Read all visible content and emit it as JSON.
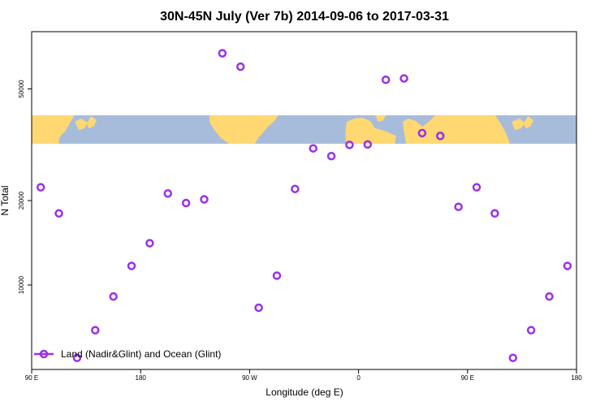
{
  "chart_data": {
    "type": "scatter",
    "title": "30N-45N July (Ver 7b)   2014-09-06 to 2017-03-31",
    "xlabel": "Longitude (deg E)",
    "ylabel": "N Total",
    "x_ticks": [
      {
        "value": 90,
        "label": "90 E"
      },
      {
        "value": 180,
        "label": "180"
      },
      {
        "value": 270,
        "label": "90 W"
      },
      {
        "value": 360,
        "label": "0"
      },
      {
        "value": 450,
        "label": "90 E"
      },
      {
        "value": 540,
        "label": "180"
      }
    ],
    "xlim": [
      90,
      540
    ],
    "y_scale": "log",
    "y_ticks": [
      {
        "value": 10000,
        "label": "10000"
      },
      {
        "value": 20000,
        "label": "20000"
      },
      {
        "value": 50000,
        "label": "50000"
      }
    ],
    "ylim": [
      5000,
      80000
    ],
    "map_band": {
      "ocean_color": "#a7bcda",
      "land_color": "#ffd872"
    },
    "series": [
      {
        "name": "Land (Nadir&Glint) and Ocean (Glint)",
        "color": "#9b30e8",
        "x": [
          97.5,
          112.5,
          127.5,
          142.5,
          157.5,
          172.5,
          187.5,
          202.5,
          217.5,
          232.5,
          247.5,
          262.5,
          277.5,
          292.5,
          307.5,
          322.5,
          337.5,
          352.5,
          367.5,
          382.5,
          397.5,
          412.5,
          427.5,
          442.5,
          457.5,
          472.5,
          487.5,
          502.5,
          517.5,
          532.5
        ],
        "y": [
          22300,
          18000,
          5500,
          6900,
          9100,
          11700,
          14100,
          21200,
          19600,
          20200,
          67000,
          60000,
          8300,
          10800,
          22000,
          30700,
          28800,
          31600,
          31700,
          53900,
          54500,
          34800,
          34000,
          19000,
          22300,
          18000,
          5500,
          6900,
          9100,
          11700
        ]
      }
    ],
    "legend_position": "bottom-left"
  }
}
